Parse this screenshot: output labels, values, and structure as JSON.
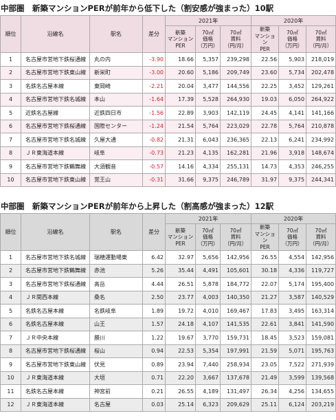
{
  "tables": [
    {
      "title": "中部圏　新築マンションPERが前年から低下した（割安感が強まった）10駅",
      "header": {
        "rank": "順位",
        "line": "沿線名",
        "station": "駅名",
        "diff": "差分",
        "year_a": "2021年",
        "year_b": "2020年",
        "sub_a": [
          "新築\nマンション\nPER",
          "70㎡\n価格\n（万円）",
          "70㎡\n賃料\n（円/月）"
        ],
        "sub_b": [
          "新築\nマンション\nPER",
          "70㎡\n価格\n（万円）",
          "70㎡\n賃料\n（円/月）"
        ]
      },
      "rows": [
        [
          "1",
          "名古屋市営地下鉄桜通線",
          "丸の内",
          "-3.90",
          "18.66",
          "5,357",
          "239,298",
          "22.56",
          "5,903",
          "218,019"
        ],
        [
          "2",
          "名古屋市営地下鉄東山線",
          "新栄町",
          "-3.00",
          "20.60",
          "5,186",
          "209,749",
          "23.60",
          "5,734",
          "202,478"
        ],
        [
          "3",
          "名鉄名古屋本線",
          "東岡崎",
          "-2.21",
          "20.04",
          "3,477",
          "144,556",
          "22.25",
          "3,452",
          "129,261"
        ],
        [
          "4",
          "名古屋市営地下鉄名城線",
          "本山",
          "-1.64",
          "17.39",
          "5,528",
          "264,930",
          "19.03",
          "6,050",
          "264,922"
        ],
        [
          "5",
          "近鉄名古屋線",
          "近鉄四日市",
          "-1.56",
          "22.89",
          "3,903",
          "142,119",
          "24.45",
          "4,141",
          "141,166"
        ],
        [
          "6",
          "名古屋市営地下鉄桜通線",
          "国際センター",
          "-1.24",
          "21.54",
          "5,764",
          "223,029",
          "22.78",
          "5,764",
          "210,878"
        ],
        [
          "7",
          "名古屋市営地下鉄名城線",
          "久屋大通",
          "-0.82",
          "21.31",
          "6,043",
          "236,365",
          "22.13",
          "6,241",
          "234,992"
        ],
        [
          "8",
          "ＪＲ東海道本線",
          "岐阜",
          "-0.73",
          "21.23",
          "4,135",
          "162,281",
          "21.96",
          "3,918",
          "148,674"
        ],
        [
          "9",
          "名古屋市営地下鉄鶴舞線",
          "大須観音",
          "-0.57",
          "14.16",
          "4,334",
          "255,131",
          "14.73",
          "4,353",
          "246,255"
        ],
        [
          "10",
          "名古屋市営地下鉄東山線",
          "覚王山",
          "-0.31",
          "31.66",
          "9,375",
          "246,789",
          "31.97",
          "9,375",
          "244,341"
        ]
      ]
    },
    {
      "title": "中部圏　新築マンションPERが前年から上昇した（割高感が強まった）12駅",
      "header": {
        "rank": "順位",
        "line": "沿線名",
        "station": "駅名",
        "diff": "差分",
        "year_a": "2021年",
        "year_b": "2020年",
        "sub_a": [
          "新築\nマンション\nPER",
          "70㎡\n価格\n（万円）",
          "70㎡\n賃料\n（円/月）"
        ],
        "sub_b": [
          "新築\nマンション\nPER",
          "70㎡\n価格\n（万円）",
          "70㎡\n賃料\n（円/月）"
        ]
      },
      "rows": [
        [
          "1",
          "名古屋市営地下鉄名城線",
          "瑞穂運動場東",
          "6.42",
          "32.97",
          "5,656",
          "142,956",
          "26.55",
          "4,554",
          "142,956"
        ],
        [
          "2",
          "名古屋市営地下鉄鶴舞線",
          "赤池",
          "5.26",
          "35.44",
          "4,491",
          "105,601",
          "30.18",
          "4,336",
          "119,727"
        ],
        [
          "3",
          "名古屋市営地下鉄桜通線",
          "高岳",
          "4.44",
          "26.51",
          "5,878",
          "184,772",
          "22.07",
          "5,174",
          "195,400"
        ],
        [
          "4",
          "ＪＲ関西本線",
          "桑名",
          "2.50",
          "23.77",
          "4,003",
          "140,350",
          "21.27",
          "3,587",
          "140,529"
        ],
        [
          "5",
          "名鉄名古屋本線",
          "名鉄岐阜",
          "1.89",
          "19.72",
          "4,010",
          "169,467",
          "17.83",
          "3,495",
          "163,314"
        ],
        [
          "6",
          "名鉄名古屋本線",
          "山王",
          "1.57",
          "24.18",
          "4,107",
          "141,535",
          "22.61",
          "3,841",
          "141,590"
        ],
        [
          "7",
          "ＪＲ中央本線",
          "勝川",
          "1.22",
          "19.67",
          "3,770",
          "159,731",
          "18.45",
          "3,523",
          "159,081"
        ],
        [
          "8",
          "名古屋市営地下鉄桜通線",
          "桜山",
          "0.94",
          "22.53",
          "5,354",
          "197,991",
          "21.59",
          "5,071",
          "195,763"
        ],
        [
          "9",
          "名古屋市営地下鉄東山線",
          "伏見",
          "0.89",
          "23.94",
          "7,440",
          "258,934",
          "23.05",
          "7,522",
          "271,939"
        ],
        [
          "10",
          "ＪＲ東海道本線",
          "大垣",
          "0.71",
          "22.20",
          "3,667",
          "137,678",
          "21.49",
          "3,599",
          "139,568"
        ],
        [
          "11",
          "名鉄名古屋本線",
          "神宮前",
          "0.21",
          "26.55",
          "4,189",
          "131,497",
          "26.34",
          "4,256",
          "134,655"
        ],
        [
          "12",
          "ＪＲ東海道本線",
          "名古屋",
          "0.03",
          "25.14",
          "6,323",
          "209,629",
          "25.11",
          "6,124",
          "203,219"
        ]
      ]
    }
  ]
}
